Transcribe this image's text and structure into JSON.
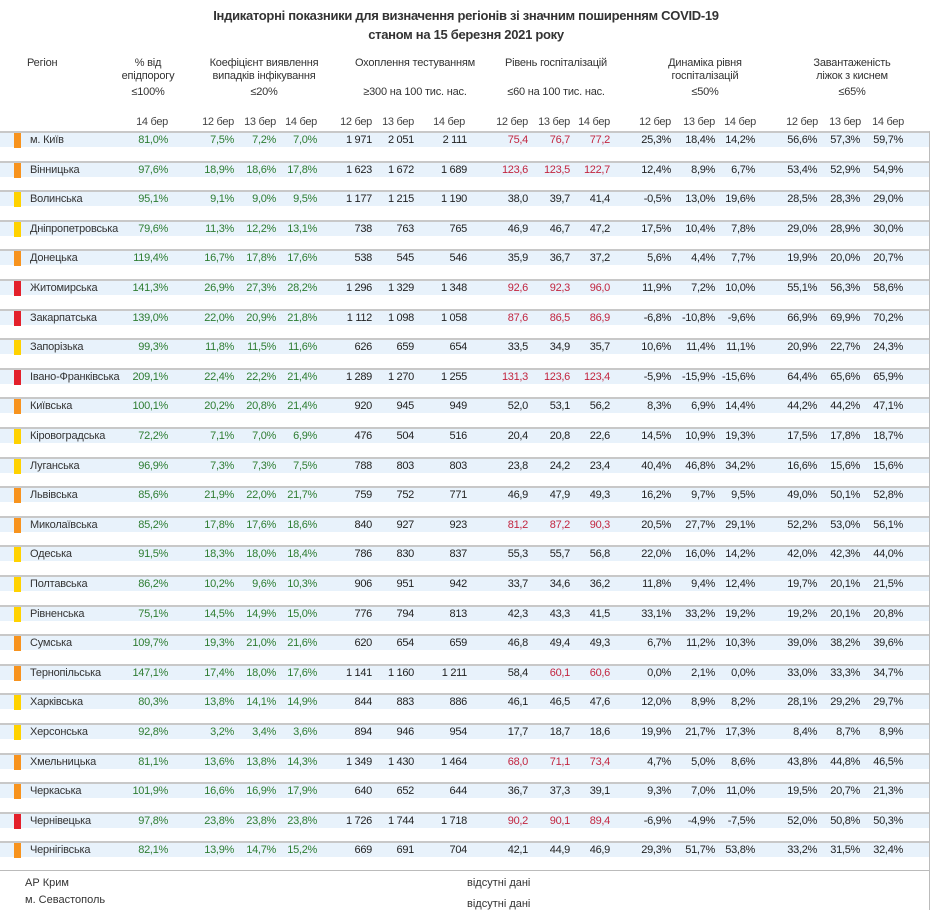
{
  "title": {
    "line1": "Індикаторні показники для визначення регіонів зі значним поширенням COVID-19",
    "line2": "станом на 15 березня 2021 року"
  },
  "columns": {
    "region": "Регіон",
    "epi": {
      "line1": "% від",
      "line2": "епідпорогу",
      "threshold": "≤100%",
      "dates": [
        "14 бер"
      ]
    },
    "detect": {
      "line1": "Коефіцієнт виявлення",
      "line2": "випадків інфікування",
      "threshold": "≤20%",
      "dates": [
        "12 бер",
        "13 бер",
        "14 бер"
      ]
    },
    "testing": {
      "line1": "Охоплення тестуванням",
      "line2": "",
      "threshold": "≥300 на 100 тис. нас.",
      "dates": [
        "12 бер",
        "13 бер",
        "14 бер"
      ]
    },
    "hosp": {
      "line1": "Рівень госпіталізацій",
      "line2": "",
      "threshold": "≤60 на 100 тис. нас.",
      "dates": [
        "12 бер",
        "13 бер",
        "14 бер"
      ]
    },
    "dynamics": {
      "line1": "Динаміка рівня",
      "line2": "госпіталізацій",
      "threshold": "≤50%",
      "dates": [
        "12 бер",
        "13 бер",
        "14 бер"
      ]
    },
    "beds": {
      "line1": "Завантаженість",
      "line2": "ліжок з киснем",
      "threshold": "≤65%",
      "dates": [
        "12 бер",
        "13 бер",
        "14 бер"
      ]
    }
  },
  "colors": {
    "orange": "#f7931e",
    "yellow": "#ffd200",
    "red": "#e3202b",
    "green_text": "#2e7d32",
    "red_text": "#c2253f"
  },
  "rows": [
    {
      "region": "м. Київ",
      "level": "orange",
      "epi": "81,0%",
      "detect": [
        "7,5%",
        "7,2%",
        "7,0%"
      ],
      "testing": [
        "1 971",
        "2 051",
        "2 111"
      ],
      "hosp": [
        "75,4",
        "76,7",
        "77,2"
      ],
      "dynamics": [
        "25,3%",
        "18,4%",
        "14,2%"
      ],
      "beds": [
        "56,6%",
        "57,3%",
        "59,7%"
      ]
    },
    {
      "region": "Вінницька",
      "level": "orange",
      "epi": "97,6%",
      "detect": [
        "18,9%",
        "18,6%",
        "17,8%"
      ],
      "testing": [
        "1 623",
        "1 672",
        "1 689"
      ],
      "hosp": [
        "123,6",
        "123,5",
        "122,7"
      ],
      "dynamics": [
        "12,4%",
        "8,9%",
        "6,7%"
      ],
      "beds": [
        "53,4%",
        "52,9%",
        "54,9%"
      ]
    },
    {
      "region": "Волинська",
      "level": "yellow",
      "epi": "95,1%",
      "detect": [
        "9,1%",
        "9,0%",
        "9,5%"
      ],
      "testing": [
        "1 177",
        "1 215",
        "1 190"
      ],
      "hosp": [
        "38,0",
        "39,7",
        "41,4"
      ],
      "dynamics": [
        "-0,5%",
        "13,0%",
        "19,6%"
      ],
      "beds": [
        "28,5%",
        "28,3%",
        "29,0%"
      ]
    },
    {
      "region": "Дніпропетровська",
      "level": "yellow",
      "epi": "79,6%",
      "detect": [
        "11,3%",
        "12,2%",
        "13,1%"
      ],
      "testing": [
        "738",
        "763",
        "765"
      ],
      "hosp": [
        "46,9",
        "46,7",
        "47,2"
      ],
      "dynamics": [
        "17,5%",
        "10,4%",
        "7,8%"
      ],
      "beds": [
        "29,0%",
        "28,9%",
        "30,0%"
      ]
    },
    {
      "region": "Донецька",
      "level": "orange",
      "epi": "119,4%",
      "detect": [
        "16,7%",
        "17,8%",
        "17,6%"
      ],
      "testing": [
        "538",
        "545",
        "546"
      ],
      "hosp": [
        "35,9",
        "36,7",
        "37,2"
      ],
      "dynamics": [
        "5,6%",
        "4,4%",
        "7,7%"
      ],
      "beds": [
        "19,9%",
        "20,0%",
        "20,7%"
      ]
    },
    {
      "region": "Житомирська",
      "level": "red",
      "epi": "141,3%",
      "detect": [
        "26,9%",
        "27,3%",
        "28,2%"
      ],
      "testing": [
        "1 296",
        "1 329",
        "1 348"
      ],
      "hosp": [
        "92,6",
        "92,3",
        "96,0"
      ],
      "dynamics": [
        "11,9%",
        "7,2%",
        "10,0%"
      ],
      "beds": [
        "55,1%",
        "56,3%",
        "58,6%"
      ]
    },
    {
      "region": "Закарпатська",
      "level": "red",
      "epi": "139,0%",
      "detect": [
        "22,0%",
        "20,9%",
        "21,8%"
      ],
      "testing": [
        "1 112",
        "1 098",
        "1 058"
      ],
      "hosp": [
        "87,6",
        "86,5",
        "86,9"
      ],
      "dynamics": [
        "-6,8%",
        "-10,8%",
        "-9,6%"
      ],
      "beds": [
        "66,9%",
        "69,9%",
        "70,2%"
      ]
    },
    {
      "region": "Запорізька",
      "level": "yellow",
      "epi": "99,3%",
      "detect": [
        "11,8%",
        "11,5%",
        "11,6%"
      ],
      "testing": [
        "626",
        "659",
        "654"
      ],
      "hosp": [
        "33,5",
        "34,9",
        "35,7"
      ],
      "dynamics": [
        "10,6%",
        "11,4%",
        "11,1%"
      ],
      "beds": [
        "20,9%",
        "22,7%",
        "24,3%"
      ]
    },
    {
      "region": "Івано-Франківська",
      "level": "red",
      "epi": "209,1%",
      "detect": [
        "22,4%",
        "22,2%",
        "21,4%"
      ],
      "testing": [
        "1 289",
        "1 270",
        "1 255"
      ],
      "hosp": [
        "131,3",
        "123,6",
        "123,4"
      ],
      "dynamics": [
        "-5,9%",
        "-15,9%",
        "-15,6%"
      ],
      "beds": [
        "64,4%",
        "65,6%",
        "65,9%"
      ]
    },
    {
      "region": "Київська",
      "level": "orange",
      "epi": "100,1%",
      "detect": [
        "20,2%",
        "20,8%",
        "21,4%"
      ],
      "testing": [
        "920",
        "945",
        "949"
      ],
      "hosp": [
        "52,0",
        "53,1",
        "56,2"
      ],
      "dynamics": [
        "8,3%",
        "6,9%",
        "14,4%"
      ],
      "beds": [
        "44,2%",
        "44,2%",
        "47,1%"
      ]
    },
    {
      "region": "Кіровоградська",
      "level": "yellow",
      "epi": "72,2%",
      "detect": [
        "7,1%",
        "7,0%",
        "6,9%"
      ],
      "testing": [
        "476",
        "504",
        "516"
      ],
      "hosp": [
        "20,4",
        "20,8",
        "22,6"
      ],
      "dynamics": [
        "14,5%",
        "10,9%",
        "19,3%"
      ],
      "beds": [
        "17,5%",
        "17,8%",
        "18,7%"
      ]
    },
    {
      "region": "Луганська",
      "level": "yellow",
      "epi": "96,9%",
      "detect": [
        "7,3%",
        "7,3%",
        "7,5%"
      ],
      "testing": [
        "788",
        "803",
        "803"
      ],
      "hosp": [
        "23,8",
        "24,2",
        "23,4"
      ],
      "dynamics": [
        "40,4%",
        "46,8%",
        "34,2%"
      ],
      "beds": [
        "16,6%",
        "15,6%",
        "15,6%"
      ]
    },
    {
      "region": "Львівська",
      "level": "orange",
      "epi": "85,6%",
      "detect": [
        "21,9%",
        "22,0%",
        "21,7%"
      ],
      "testing": [
        "759",
        "752",
        "771"
      ],
      "hosp": [
        "46,9",
        "47,9",
        "49,3"
      ],
      "dynamics": [
        "16,2%",
        "9,7%",
        "9,5%"
      ],
      "beds": [
        "49,0%",
        "50,1%",
        "52,8%"
      ]
    },
    {
      "region": "Миколаївська",
      "level": "orange",
      "epi": "85,2%",
      "detect": [
        "17,8%",
        "17,6%",
        "18,6%"
      ],
      "testing": [
        "840",
        "927",
        "923"
      ],
      "hosp": [
        "81,2",
        "87,2",
        "90,3"
      ],
      "dynamics": [
        "20,5%",
        "27,7%",
        "29,1%"
      ],
      "beds": [
        "52,2%",
        "53,0%",
        "56,1%"
      ]
    },
    {
      "region": "Одеська",
      "level": "yellow",
      "epi": "91,5%",
      "detect": [
        "18,3%",
        "18,0%",
        "18,4%"
      ],
      "testing": [
        "786",
        "830",
        "837"
      ],
      "hosp": [
        "55,3",
        "55,7",
        "56,8"
      ],
      "dynamics": [
        "22,0%",
        "16,0%",
        "14,2%"
      ],
      "beds": [
        "42,0%",
        "42,3%",
        "44,0%"
      ]
    },
    {
      "region": "Полтавська",
      "level": "yellow",
      "epi": "86,2%",
      "detect": [
        "10,2%",
        "9,6%",
        "10,3%"
      ],
      "testing": [
        "906",
        "951",
        "942"
      ],
      "hosp": [
        "33,7",
        "34,6",
        "36,2"
      ],
      "dynamics": [
        "11,8%",
        "9,4%",
        "12,4%"
      ],
      "beds": [
        "19,7%",
        "20,1%",
        "21,5%"
      ]
    },
    {
      "region": "Рівненська",
      "level": "yellow",
      "epi": "75,1%",
      "detect": [
        "14,5%",
        "14,9%",
        "15,0%"
      ],
      "testing": [
        "776",
        "794",
        "813"
      ],
      "hosp": [
        "42,3",
        "43,3",
        "41,5"
      ],
      "dynamics": [
        "33,1%",
        "33,2%",
        "19,2%"
      ],
      "beds": [
        "19,2%",
        "20,1%",
        "20,8%"
      ]
    },
    {
      "region": "Сумська",
      "level": "orange",
      "epi": "109,7%",
      "detect": [
        "19,3%",
        "21,0%",
        "21,6%"
      ],
      "testing": [
        "620",
        "654",
        "659"
      ],
      "hosp": [
        "46,8",
        "49,4",
        "49,3"
      ],
      "dynamics": [
        "6,7%",
        "11,2%",
        "10,3%"
      ],
      "beds": [
        "39,0%",
        "38,2%",
        "39,6%"
      ]
    },
    {
      "region": "Тернопільська",
      "level": "orange",
      "epi": "147,1%",
      "detect": [
        "17,4%",
        "18,0%",
        "17,6%"
      ],
      "testing": [
        "1 141",
        "1 160",
        "1 211"
      ],
      "hosp": [
        "58,4",
        "60,1",
        "60,6"
      ],
      "dynamics": [
        "0,0%",
        "2,1%",
        "0,0%"
      ],
      "beds": [
        "33,0%",
        "33,3%",
        "34,7%"
      ]
    },
    {
      "region": "Харківська",
      "level": "yellow",
      "epi": "80,3%",
      "detect": [
        "13,8%",
        "14,1%",
        "14,9%"
      ],
      "testing": [
        "844",
        "883",
        "886"
      ],
      "hosp": [
        "46,1",
        "46,5",
        "47,6"
      ],
      "dynamics": [
        "12,0%",
        "8,9%",
        "8,2%"
      ],
      "beds": [
        "28,1%",
        "29,2%",
        "29,7%"
      ]
    },
    {
      "region": "Херсонська",
      "level": "yellow",
      "epi": "92,8%",
      "detect": [
        "3,2%",
        "3,4%",
        "3,6%"
      ],
      "testing": [
        "894",
        "946",
        "954"
      ],
      "hosp": [
        "17,7",
        "18,7",
        "18,6"
      ],
      "dynamics": [
        "19,9%",
        "21,7%",
        "17,3%"
      ],
      "beds": [
        "8,4%",
        "8,7%",
        "8,9%"
      ]
    },
    {
      "region": "Хмельницька",
      "level": "orange",
      "epi": "81,1%",
      "detect": [
        "13,6%",
        "13,8%",
        "14,3%"
      ],
      "testing": [
        "1 349",
        "1 430",
        "1 464"
      ],
      "hosp": [
        "68,0",
        "71,1",
        "73,4"
      ],
      "dynamics": [
        "4,7%",
        "5,0%",
        "8,6%"
      ],
      "beds": [
        "43,8%",
        "44,8%",
        "46,5%"
      ]
    },
    {
      "region": "Черкаська",
      "level": "orange",
      "epi": "101,9%",
      "detect": [
        "16,6%",
        "16,9%",
        "17,9%"
      ],
      "testing": [
        "640",
        "652",
        "644"
      ],
      "hosp": [
        "36,7",
        "37,3",
        "39,1"
      ],
      "dynamics": [
        "9,3%",
        "7,0%",
        "11,0%"
      ],
      "beds": [
        "19,5%",
        "20,7%",
        "21,3%"
      ]
    },
    {
      "region": "Чернівецька",
      "level": "red",
      "epi": "97,8%",
      "detect": [
        "23,8%",
        "23,8%",
        "23,8%"
      ],
      "testing": [
        "1 726",
        "1 744",
        "1 718"
      ],
      "hosp": [
        "90,2",
        "90,1",
        "89,4"
      ],
      "dynamics": [
        "-6,9%",
        "-4,9%",
        "-7,5%"
      ],
      "beds": [
        "52,0%",
        "50,8%",
        "50,3%"
      ]
    },
    {
      "region": "Чернігівська",
      "level": "orange",
      "epi": "82,1%",
      "detect": [
        "13,9%",
        "14,7%",
        "15,2%"
      ],
      "testing": [
        "669",
        "691",
        "704"
      ],
      "hosp": [
        "42,1",
        "44,9",
        "46,9"
      ],
      "dynamics": [
        "29,3%",
        "51,7%",
        "53,8%"
      ],
      "beds": [
        "33,2%",
        "31,5%",
        "32,4%"
      ]
    }
  ],
  "missing": [
    {
      "region": "АР Крим",
      "note": "відсутні дані"
    },
    {
      "region": "м. Севастополь",
      "note": "відсутні дані"
    }
  ]
}
